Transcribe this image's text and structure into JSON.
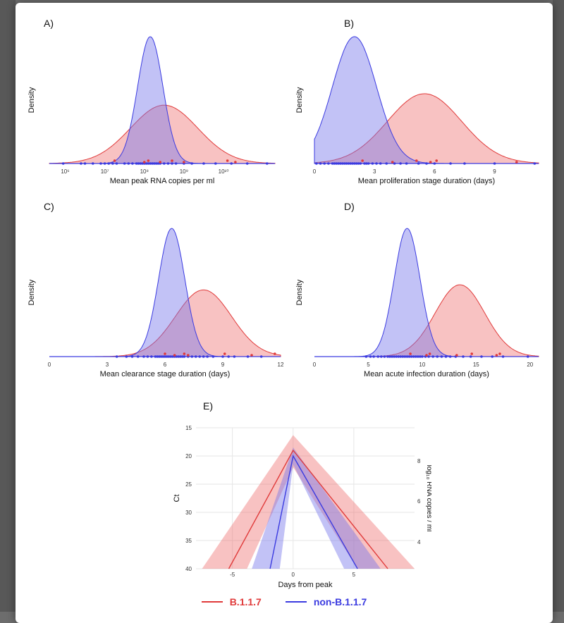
{
  "colors": {
    "b117": "#e03a3a",
    "non_b117": "#3b3be0",
    "b117_fill": "rgba(238,110,110,0.42)",
    "non_b117_fill": "rgba(120,120,235,0.45)"
  },
  "chart_data": [
    {
      "panel": "A)",
      "type": "area",
      "ylabel": "Density",
      "xlabel": "Mean peak RNA copies per ml",
      "xscale": "log10",
      "xlim": [
        5.6,
        11.3
      ],
      "xticks": [
        6,
        7,
        8,
        9,
        10
      ],
      "xtick_labels": [
        "10⁶",
        "10⁷",
        "10⁸",
        "10⁹",
        "10¹⁰"
      ],
      "series": [
        {
          "key": "b117",
          "mean": 8.5,
          "sd": 0.85,
          "peak": 0.46
        },
        {
          "key": "non_b117",
          "mean": 8.15,
          "sd": 0.32,
          "peak": 1.0
        }
      ],
      "points": {
        "b117": [
          7.25,
          8.0,
          8.1,
          8.4,
          8.7,
          9.0,
          10.1,
          10.3
        ],
        "non_b117": [
          5.95,
          6.4,
          6.5,
          6.7,
          6.9,
          7.0,
          7.1,
          7.2,
          7.3,
          7.5,
          7.6,
          7.7,
          7.8,
          7.85,
          7.9,
          7.95,
          8.0,
          8.05,
          8.1,
          8.15,
          8.2,
          8.25,
          8.3,
          8.35,
          8.4,
          8.5,
          8.6,
          8.7,
          8.8,
          9.0,
          9.2,
          9.5,
          9.8,
          10.2,
          10.6,
          11.1
        ]
      }
    },
    {
      "panel": "B)",
      "type": "area",
      "ylabel": "Density",
      "xlabel": "Mean proliferation stage duration (days)",
      "xlim": [
        0,
        11.2
      ],
      "xticks": [
        0,
        3,
        6,
        9
      ],
      "xtick_labels": [
        "0",
        "3",
        "6",
        "9"
      ],
      "series": [
        {
          "key": "b117",
          "mean": 5.5,
          "sd": 1.85,
          "peak": 0.55
        },
        {
          "key": "non_b117",
          "mean": 2.0,
          "sd": 1.1,
          "peak": 1.0
        }
      ],
      "points": {
        "b117": [
          2.4,
          3.9,
          5.1,
          5.8,
          6.1,
          10.1
        ],
        "non_b117": [
          0.1,
          0.3,
          0.5,
          0.7,
          0.9,
          1.0,
          1.1,
          1.2,
          1.3,
          1.4,
          1.5,
          1.6,
          1.7,
          1.8,
          1.9,
          2.0,
          2.1,
          2.2,
          2.3,
          2.5,
          2.6,
          2.7,
          2.9,
          3.1,
          3.3,
          3.6,
          4.0,
          4.3,
          4.6,
          5.2,
          5.6,
          6.0,
          6.8,
          7.5,
          9.0,
          11.0
        ]
      }
    },
    {
      "panel": "C)",
      "type": "area",
      "ylabel": "Density",
      "xlabel": "Mean clearance stage duration (days)",
      "xlim": [
        0,
        12
      ],
      "xticks": [
        0,
        3,
        6,
        9,
        12
      ],
      "xtick_labels": [
        "0",
        "3",
        "6",
        "9",
        "12"
      ],
      "series": [
        {
          "key": "b117",
          "mean": 8.0,
          "sd": 1.45,
          "peak": 0.52
        },
        {
          "key": "non_b117",
          "mean": 6.35,
          "sd": 0.68,
          "peak": 1.0
        }
      ],
      "points": {
        "b117": [
          6.0,
          6.5,
          7.0,
          7.2,
          9.1,
          10.5,
          11.7
        ],
        "non_b117": [
          3.5,
          4.0,
          4.3,
          4.6,
          4.9,
          5.1,
          5.3,
          5.5,
          5.6,
          5.7,
          5.8,
          5.9,
          6.0,
          6.1,
          6.2,
          6.3,
          6.4,
          6.5,
          6.6,
          6.7,
          6.8,
          6.9,
          7.0,
          7.2,
          7.4,
          7.6,
          7.8,
          8.0,
          8.2,
          8.5,
          9.0,
          9.3,
          9.6,
          10.3,
          11.0
        ]
      }
    },
    {
      "panel": "D)",
      "type": "area",
      "ylabel": "Density",
      "xlabel": "Mean acute infection duration (days)",
      "xlim": [
        0,
        20.8
      ],
      "xticks": [
        0,
        5,
        10,
        15,
        20
      ],
      "xtick_labels": [
        "0",
        "5",
        "10",
        "15",
        "20"
      ],
      "series": [
        {
          "key": "b117",
          "mean": 13.5,
          "sd": 2.3,
          "peak": 0.56
        },
        {
          "key": "non_b117",
          "mean": 8.6,
          "sd": 1.2,
          "peak": 1.0
        }
      ],
      "points": {
        "b117": [
          8.9,
          10.4,
          10.7,
          13.2,
          14.6,
          16.9,
          17.2
        ],
        "non_b117": [
          4.8,
          5.2,
          5.5,
          5.9,
          6.2,
          6.5,
          6.8,
          7.0,
          7.2,
          7.4,
          7.6,
          7.8,
          8.0,
          8.2,
          8.4,
          8.6,
          8.8,
          9.0,
          9.2,
          9.4,
          9.6,
          9.8,
          10.0,
          10.3,
          10.6,
          11.0,
          11.4,
          11.8,
          12.2,
          12.6,
          13.1,
          13.8,
          14.5,
          15.5,
          16.5,
          17.5,
          19.8
        ]
      }
    },
    {
      "panel": "E)",
      "type": "line",
      "ylabel": "Ct",
      "ylabel_right": "log₁₀ RNA copies / ml",
      "xlabel": "Days from peak",
      "xlim": [
        -8,
        10
      ],
      "ylim": [
        40,
        15
      ],
      "xticks": [
        -5,
        0,
        5
      ],
      "xtick_labels": [
        "-5",
        "0",
        "5"
      ],
      "yticks": [
        15,
        20,
        25,
        30,
        35,
        40
      ],
      "yticks_right": [
        4,
        6,
        8
      ],
      "series": [
        {
          "key": "b117",
          "name": "B.1.1.7",
          "line": [
            [
              -5.3,
              40
            ],
            [
              0,
              19
            ],
            [
              7.8,
              40
            ]
          ],
          "band": [
            [
              -7.5,
              40
            ],
            [
              0,
              16.3
            ],
            [
              10,
              40
            ],
            [
              5.3,
              40
            ],
            [
              0,
              22
            ],
            [
              -3.8,
              40
            ]
          ]
        },
        {
          "key": "non_b117",
          "name": "non-B.1.1.7",
          "line": [
            [
              -1.9,
              40
            ],
            [
              0,
              20
            ],
            [
              5.3,
              40
            ]
          ],
          "band": [
            [
              -3.4,
              40
            ],
            [
              0,
              18.5
            ],
            [
              7.2,
              40
            ],
            [
              4.2,
              40
            ],
            [
              0,
              21.5
            ],
            [
              -1.1,
              40
            ]
          ]
        }
      ]
    }
  ]
}
